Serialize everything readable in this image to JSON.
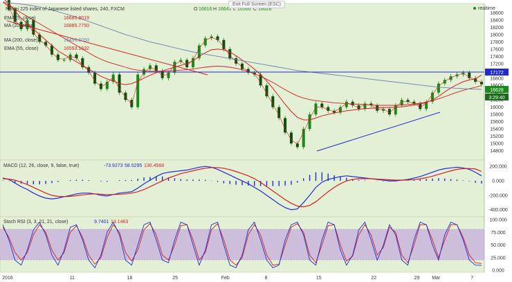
{
  "exit_button": "Exit Full Screen (ESC)",
  "realtime_label": "realtime",
  "colors": {
    "price_bg": "#e4f0d6",
    "rsi_band": "#c9b6dd",
    "candle": "#1a8a1a",
    "red": "#d21f1f",
    "blue": "#1f2ad2",
    "ma200": "#6a7fb0",
    "hline": "#1f2ad2",
    "label_box": "#1a8a1a",
    "hline_box": "#1f2ad2"
  },
  "header": {
    "title": "Nikkei 225 index of Japanese listed shares, 240, FXCM",
    "o_label": "O",
    "o_value": "16616",
    "h_label": "H",
    "h_value": "16641",
    "l_label": "L",
    "l_value": "16566",
    "c_label": "C",
    "c_value": "16628"
  },
  "legend": [
    {
      "name": "EMA (5, close)",
      "value": "16685.8019"
    },
    {
      "name": "MA (20, close)",
      "value": "16885.7750"
    },
    {
      "name": "MA (200, close)",
      "value": "16490.6050"
    },
    {
      "name": "EMA (55, close)",
      "value": "16593.1632"
    }
  ],
  "price_labels": {
    "hline": "17172",
    "last": "16628",
    "countdown": "3:29:40"
  },
  "macd_header": {
    "name": "MACD (12, 26, close, 9, false, true)",
    "v1": "-73.9273",
    "v2": "58.5295",
    "v3": "130.4568"
  },
  "rsi_header": {
    "name": "Stoch RSI (3, 3, 21, 21, close)",
    "v1": "9.7401",
    "v2": "13.1463"
  },
  "chart_data": [
    {
      "type": "line",
      "title": "Nikkei 225 index of Japanese listed shares, 240, FXCM",
      "y_ticks": [
        18600,
        18400,
        18200,
        18000,
        17800,
        17600,
        17400,
        17200,
        17000,
        16800,
        16600,
        16400,
        16200,
        16000,
        15800,
        15600,
        15400,
        15200,
        15000,
        14800
      ],
      "ylim": [
        14600,
        18800
      ],
      "x_ticks": [
        "2016",
        "11",
        "18",
        "25",
        "Feb",
        "8",
        "15",
        "22",
        "29",
        "Mar",
        "7"
      ],
      "series": [
        {
          "name": "price",
          "values": [
            18950,
            18700,
            18350,
            18150,
            18400,
            18000,
            17800,
            17700,
            17450,
            17300,
            17300,
            17450,
            17350,
            17100,
            16950,
            16650,
            16500,
            16700,
            16900,
            16400,
            16200,
            16000,
            16900,
            17050,
            17150,
            17000,
            16800,
            16950,
            17250,
            17300,
            17100,
            17350,
            17700,
            17900,
            17950,
            17850,
            17600,
            17350,
            17200,
            17050,
            16950,
            16900,
            16600,
            16300,
            16000,
            15700,
            15300,
            15000,
            14900,
            15400,
            15800,
            16100,
            16000,
            15900,
            15850,
            16000,
            16150,
            16050,
            15950,
            16100,
            16050,
            15900,
            15950,
            15800,
            16050,
            16200,
            16150,
            16100,
            15950,
            16150,
            16400,
            16650,
            16750,
            16850,
            16900,
            16950,
            16800,
            16700,
            16628
          ]
        },
        {
          "name": "MA (20, close)",
          "values": [
            19000,
            18850,
            18650,
            18450,
            18300,
            18150,
            18000,
            17850,
            17700,
            17550,
            17450,
            17350,
            17250,
            17150,
            17050,
            16950,
            16850,
            16780,
            16720,
            16650,
            16620,
            16650,
            16720,
            16800,
            16880,
            16950,
            17000,
            17050,
            17100,
            17150,
            17200,
            17280,
            17400,
            17500,
            17580,
            17600,
            17580,
            17520,
            17420,
            17300,
            17180,
            17050,
            16900,
            16720,
            16520,
            16300,
            16080,
            15880,
            15720,
            15650,
            15650,
            15700,
            15760,
            15800,
            15840,
            15870,
            15900,
            15920,
            15940,
            15960,
            15970,
            15980,
            15990,
            15990,
            16000,
            16010,
            16030,
            16060,
            16090,
            16130,
            16200,
            16300,
            16420,
            16530,
            16620,
            16700,
            16750,
            16780,
            16885
          ]
        },
        {
          "name": "EMA (55, close)",
          "values": [
            18900,
            18800,
            18700,
            18600,
            18500,
            18400,
            18300,
            18200,
            18100,
            18000,
            17900,
            17800,
            17700,
            17600,
            17500,
            17400,
            17320,
            17250,
            17200,
            17150,
            17100,
            17050,
            17020,
            17000,
            16990,
            16990,
            16990,
            17000,
            17010,
            17020,
            17030,
            17050,
            17080,
            17100,
            17120,
            17130,
            17120,
            17100,
            17070,
            17030,
            16980,
            16920,
            16850,
            16770,
            16680,
            16580,
            16480,
            16390,
            16310,
            16250,
            16210,
            16180,
            16160,
            16140,
            16120,
            16110,
            16100,
            16090,
            16080,
            16070,
            16060,
            16050,
            16050,
            16050,
            16050,
            16060,
            16070,
            16090,
            16110,
            16140,
            16180,
            16230,
            16290,
            16350,
            16410,
            16460,
            16510,
            16550,
            16593
          ]
        },
        {
          "name": "MA (200, close)",
          "values": [
            18900,
            18880,
            18860,
            18840,
            18820,
            18790,
            18760,
            18720,
            18680,
            18630,
            18580,
            18530,
            18480,
            18420,
            18360,
            18300,
            18240,
            18180,
            18120,
            18060,
            18000,
            17950,
            17900,
            17850,
            17800,
            17760,
            17720,
            17680,
            17640,
            17600,
            17560,
            17520,
            17490,
            17460,
            17430,
            17400,
            17370,
            17340,
            17310,
            17280,
            17250,
            17220,
            17190,
            17160,
            17130,
            17100,
            17070,
            17040,
            17010,
            16990,
            16970,
            16950,
            16930,
            16910,
            16890,
            16870,
            16850,
            16830,
            16810,
            16790,
            16770,
            16750,
            16730,
            16710,
            16690,
            16670,
            16650,
            16630,
            16610,
            16590,
            16570,
            16550,
            16540,
            16530,
            16520,
            16510,
            16500,
            16495,
            16490
          ]
        },
        {
          "name": "EMA (5, close)",
          "values": [
            18900,
            18750,
            18400,
            18200,
            18300,
            18050,
            17850,
            17720,
            17500,
            17350,
            17320,
            17400,
            17360,
            17150,
            17000,
            16720,
            16560,
            16660,
            16830,
            16500,
            16280,
            16080,
            16700,
            16950,
            17100,
            17030,
            16860,
            16920,
            17180,
            17270,
            17150,
            17300,
            17620,
            17840,
            17920,
            17860,
            17660,
            17420,
            17260,
            17100,
            16990,
            16920,
            16680,
            16380,
            16080,
            15780,
            15400,
            15100,
            14980,
            15300,
            15680,
            16000,
            16000,
            15930,
            15880,
            15970,
            16110,
            16060,
            15980,
            16080,
            16060,
            15930,
            15950,
            15840,
            16000,
            16150,
            16150,
            16110,
            15990,
            16120,
            16350,
            16580,
            16710,
            16810,
            16880,
            16930,
            16830,
            16740,
            16685
          ]
        }
      ],
      "hline": 17172
    },
    {
      "type": "line",
      "title": "MACD (12, 26, close, 9, false, true)",
      "y_ticks": [
        200,
        0,
        -200,
        -400
      ],
      "ylim": [
        -480,
        260
      ],
      "series": [
        {
          "name": "MACD",
          "values": [
            40,
            20,
            -30,
            -80,
            -120,
            -170,
            -210,
            -240,
            -250,
            -240,
            -220,
            -200,
            -180,
            -170,
            -170,
            -180,
            -200,
            -210,
            -190,
            -170,
            -160,
            -150,
            -100,
            -40,
            10,
            60,
            100,
            120,
            130,
            140,
            150,
            170,
            190,
            200,
            190,
            160,
            120,
            80,
            40,
            0,
            -40,
            -90,
            -140,
            -200,
            -260,
            -320,
            -370,
            -400,
            -390,
            -300,
            -200,
            -90,
            -20,
            20,
            40,
            60,
            70,
            60,
            50,
            40,
            30,
            20,
            10,
            0,
            0,
            10,
            20,
            40,
            60,
            90,
            120,
            150,
            170,
            180,
            190,
            180,
            160,
            120,
            70
          ]
        },
        {
          "name": "Signal",
          "values": [
            30,
            25,
            10,
            -20,
            -50,
            -90,
            -130,
            -170,
            -200,
            -215,
            -220,
            -215,
            -205,
            -195,
            -185,
            -180,
            -185,
            -190,
            -190,
            -185,
            -180,
            -170,
            -150,
            -120,
            -80,
            -40,
            0,
            40,
            70,
            100,
            120,
            140,
            160,
            175,
            185,
            185,
            175,
            155,
            130,
            100,
            70,
            30,
            -20,
            -80,
            -140,
            -200,
            -260,
            -310,
            -350,
            -360,
            -340,
            -290,
            -220,
            -150,
            -90,
            -40,
            0,
            20,
            30,
            30,
            30,
            25,
            20,
            15,
            10,
            10,
            12,
            18,
            28,
            45,
            65,
            90,
            115,
            140,
            160,
            170,
            172,
            165,
            130
          ]
        }
      ]
    },
    {
      "type": "line",
      "title": "Stoch RSI (3, 3, 21, 21, close)",
      "y_ticks": [
        100,
        75,
        50,
        25,
        0
      ],
      "ylim": [
        0,
        100
      ],
      "band": [
        20,
        80
      ],
      "series": [
        {
          "name": "K",
          "values": [
            90,
            60,
            20,
            10,
            40,
            80,
            95,
            70,
            30,
            10,
            40,
            85,
            90,
            60,
            20,
            5,
            30,
            75,
            95,
            70,
            20,
            10,
            50,
            90,
            95,
            60,
            20,
            15,
            60,
            95,
            90,
            50,
            10,
            40,
            90,
            95,
            50,
            10,
            5,
            30,
            80,
            95,
            60,
            20,
            5,
            10,
            60,
            90,
            95,
            70,
            20,
            10,
            60,
            95,
            90,
            40,
            10,
            30,
            80,
            95,
            60,
            20,
            50,
            90,
            70,
            20,
            10,
            60,
            95,
            90,
            50,
            20,
            70,
            95,
            90,
            60,
            20,
            10,
            9.7
          ]
        },
        {
          "name": "D",
          "values": [
            85,
            65,
            35,
            20,
            35,
            70,
            90,
            75,
            40,
            20,
            35,
            75,
            88,
            65,
            30,
            12,
            25,
            65,
            90,
            75,
            35,
            18,
            40,
            80,
            92,
            70,
            30,
            20,
            50,
            88,
            90,
            60,
            20,
            35,
            80,
            92,
            60,
            20,
            10,
            25,
            70,
            90,
            70,
            30,
            10,
            12,
            50,
            85,
            92,
            75,
            30,
            15,
            50,
            88,
            90,
            50,
            18,
            28,
            70,
            90,
            70,
            30,
            45,
            85,
            75,
            30,
            15,
            50,
            90,
            90,
            60,
            25,
            60,
            90,
            90,
            65,
            30,
            15,
            13.1
          ]
        }
      ]
    }
  ]
}
